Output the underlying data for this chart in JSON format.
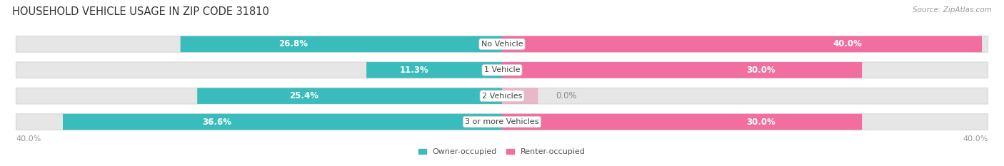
{
  "title": "HOUSEHOLD VEHICLE USAGE IN ZIP CODE 31810",
  "source": "Source: ZipAtlas.com",
  "categories": [
    "No Vehicle",
    "1 Vehicle",
    "2 Vehicles",
    "3 or more Vehicles"
  ],
  "owner_values": [
    26.8,
    11.3,
    25.4,
    36.6
  ],
  "renter_values": [
    40.0,
    30.0,
    0.0,
    30.0
  ],
  "owner_color": "#3BBCBC",
  "renter_color": "#F06FA0",
  "bar_bg_color": "#E6E6E6",
  "bar_bg_outline": "#D8D8D8",
  "axis_max": 40.0,
  "bar_height": 0.62,
  "title_fontsize": 10.5,
  "source_fontsize": 7.5,
  "label_fontsize": 8.5,
  "category_fontsize": 8,
  "legend_fontsize": 8,
  "axis_label_fontsize": 8,
  "background_color": "#FFFFFF",
  "renter_tiny_value": 3.0
}
